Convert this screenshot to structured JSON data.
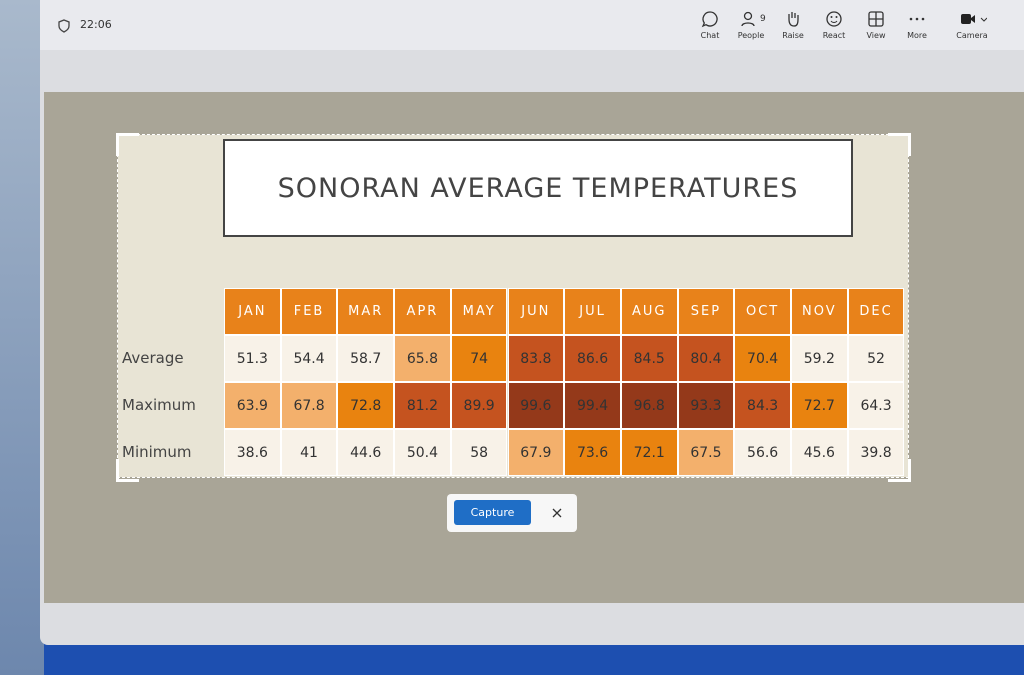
{
  "toolbar": {
    "time": "22:06",
    "buttons": [
      {
        "label": "Chat"
      },
      {
        "label": "People",
        "badge": 9
      },
      {
        "label": "Raise"
      },
      {
        "label": "React"
      },
      {
        "label": "View"
      },
      {
        "label": "More"
      },
      {
        "label": "Camera"
      }
    ]
  },
  "slide": {
    "title": "SONORAN AVERAGE TEMPERATURES",
    "table": {
      "header_color": "#e8821a",
      "columns": [
        "JAN",
        "FEB",
        "MAR",
        "APR",
        "MAY",
        "JUN",
        "JUL",
        "AUG",
        "SEP",
        "OCT",
        "NOV",
        "DEC"
      ],
      "rows": [
        {
          "label": "Average",
          "values": [
            51.3,
            54.4,
            58.7,
            65.8,
            74,
            83.8,
            86.6,
            84.5,
            80.4,
            70.4,
            59.2,
            52
          ],
          "colors": [
            "#f8f2e8",
            "#f8f2e8",
            "#f8f2e8",
            "#f3b06c",
            "#e9830f",
            "#c5531f",
            "#c5531f",
            "#c5531f",
            "#c5531f",
            "#e9830f",
            "#f8f2e8",
            "#f8f2e8"
          ]
        },
        {
          "label": "Maximum",
          "values": [
            63.9,
            67.8,
            72.8,
            81.2,
            89.9,
            99.6,
            99.4,
            96.8,
            93.3,
            84.3,
            72.7,
            64.3
          ],
          "colors": [
            "#f3b06c",
            "#f3b06c",
            "#e9830f",
            "#c5531f",
            "#c5531f",
            "#94391a",
            "#94391a",
            "#94391a",
            "#94391a",
            "#c5531f",
            "#e9830f",
            "#f8f2e8"
          ]
        },
        {
          "label": "Minimum",
          "values": [
            38.6,
            41,
            44.6,
            50.4,
            58,
            67.9,
            73.6,
            72.1,
            67.5,
            56.6,
            45.6,
            39.8
          ],
          "colors": [
            "#f8f2e8",
            "#f8f2e8",
            "#f8f2e8",
            "#f8f2e8",
            "#f8f2e8",
            "#f3b06c",
            "#e9830f",
            "#e9830f",
            "#f3b06c",
            "#f8f2e8",
            "#f8f2e8",
            "#f8f2e8"
          ]
        }
      ]
    }
  },
  "capture": {
    "button": "Capture"
  }
}
